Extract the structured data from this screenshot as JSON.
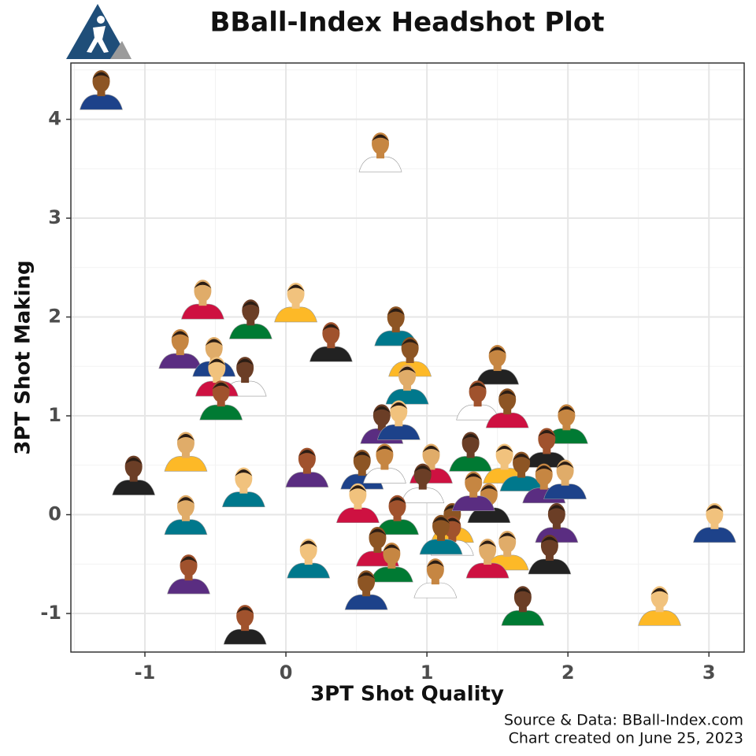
{
  "chart_data": {
    "type": "scatter",
    "title": "BBall-Index Headshot Plot",
    "x_label": "3PT Shot Quality",
    "y_label": "3PT Shot Making",
    "source": "Source & Data: BBall-Index.com",
    "created": "Chart created on June 25, 2023",
    "xlim": [
      -1.525,
      3.25
    ],
    "ylim": [
      -1.39,
      4.57
    ],
    "xticks": [
      -1,
      0,
      1,
      2,
      3
    ],
    "yticks": [
      -1,
      0,
      1,
      2,
      3,
      4
    ],
    "grid": true,
    "x": [
      -1.31,
      0.67,
      -0.59,
      -0.25,
      0.07,
      0.32,
      0.78,
      -0.75,
      -0.51,
      -0.29,
      -0.49,
      -0.46,
      0.88,
      1.5,
      0.86,
      0.68,
      0.8,
      1.36,
      1.57,
      1.99,
      -0.71,
      -1.08,
      -0.3,
      0.15,
      0.54,
      0.7,
      1.03,
      1.31,
      1.55,
      1.85,
      1.67,
      1.83,
      1.98,
      0.97,
      0.51,
      0.79,
      1.18,
      1.44,
      -0.71,
      1.92,
      3.04,
      1.18,
      0.65,
      0.75,
      1.57,
      1.87,
      0.16,
      -0.69,
      0.57,
      1.06,
      1.43,
      1.68,
      2.65,
      -0.29,
      1.1,
      1.33
    ],
    "y": [
      4.29,
      3.66,
      2.17,
      1.97,
      2.14,
      1.74,
      1.9,
      1.67,
      1.59,
      1.39,
      1.39,
      1.15,
      1.59,
      1.51,
      1.31,
      0.91,
      0.95,
      1.15,
      1.07,
      0.91,
      0.63,
      0.39,
      0.27,
      0.47,
      0.45,
      0.51,
      0.51,
      0.63,
      0.51,
      0.67,
      0.43,
      0.31,
      0.35,
      0.31,
      0.11,
      -0.01,
      -0.09,
      0.11,
      -0.01,
      -0.09,
      -0.09,
      -0.22,
      -0.33,
      -0.49,
      -0.37,
      -0.41,
      -0.45,
      -0.61,
      -0.77,
      -0.65,
      -0.45,
      -0.93,
      -0.93,
      -1.12,
      -0.21,
      0.23
    ]
  }
}
